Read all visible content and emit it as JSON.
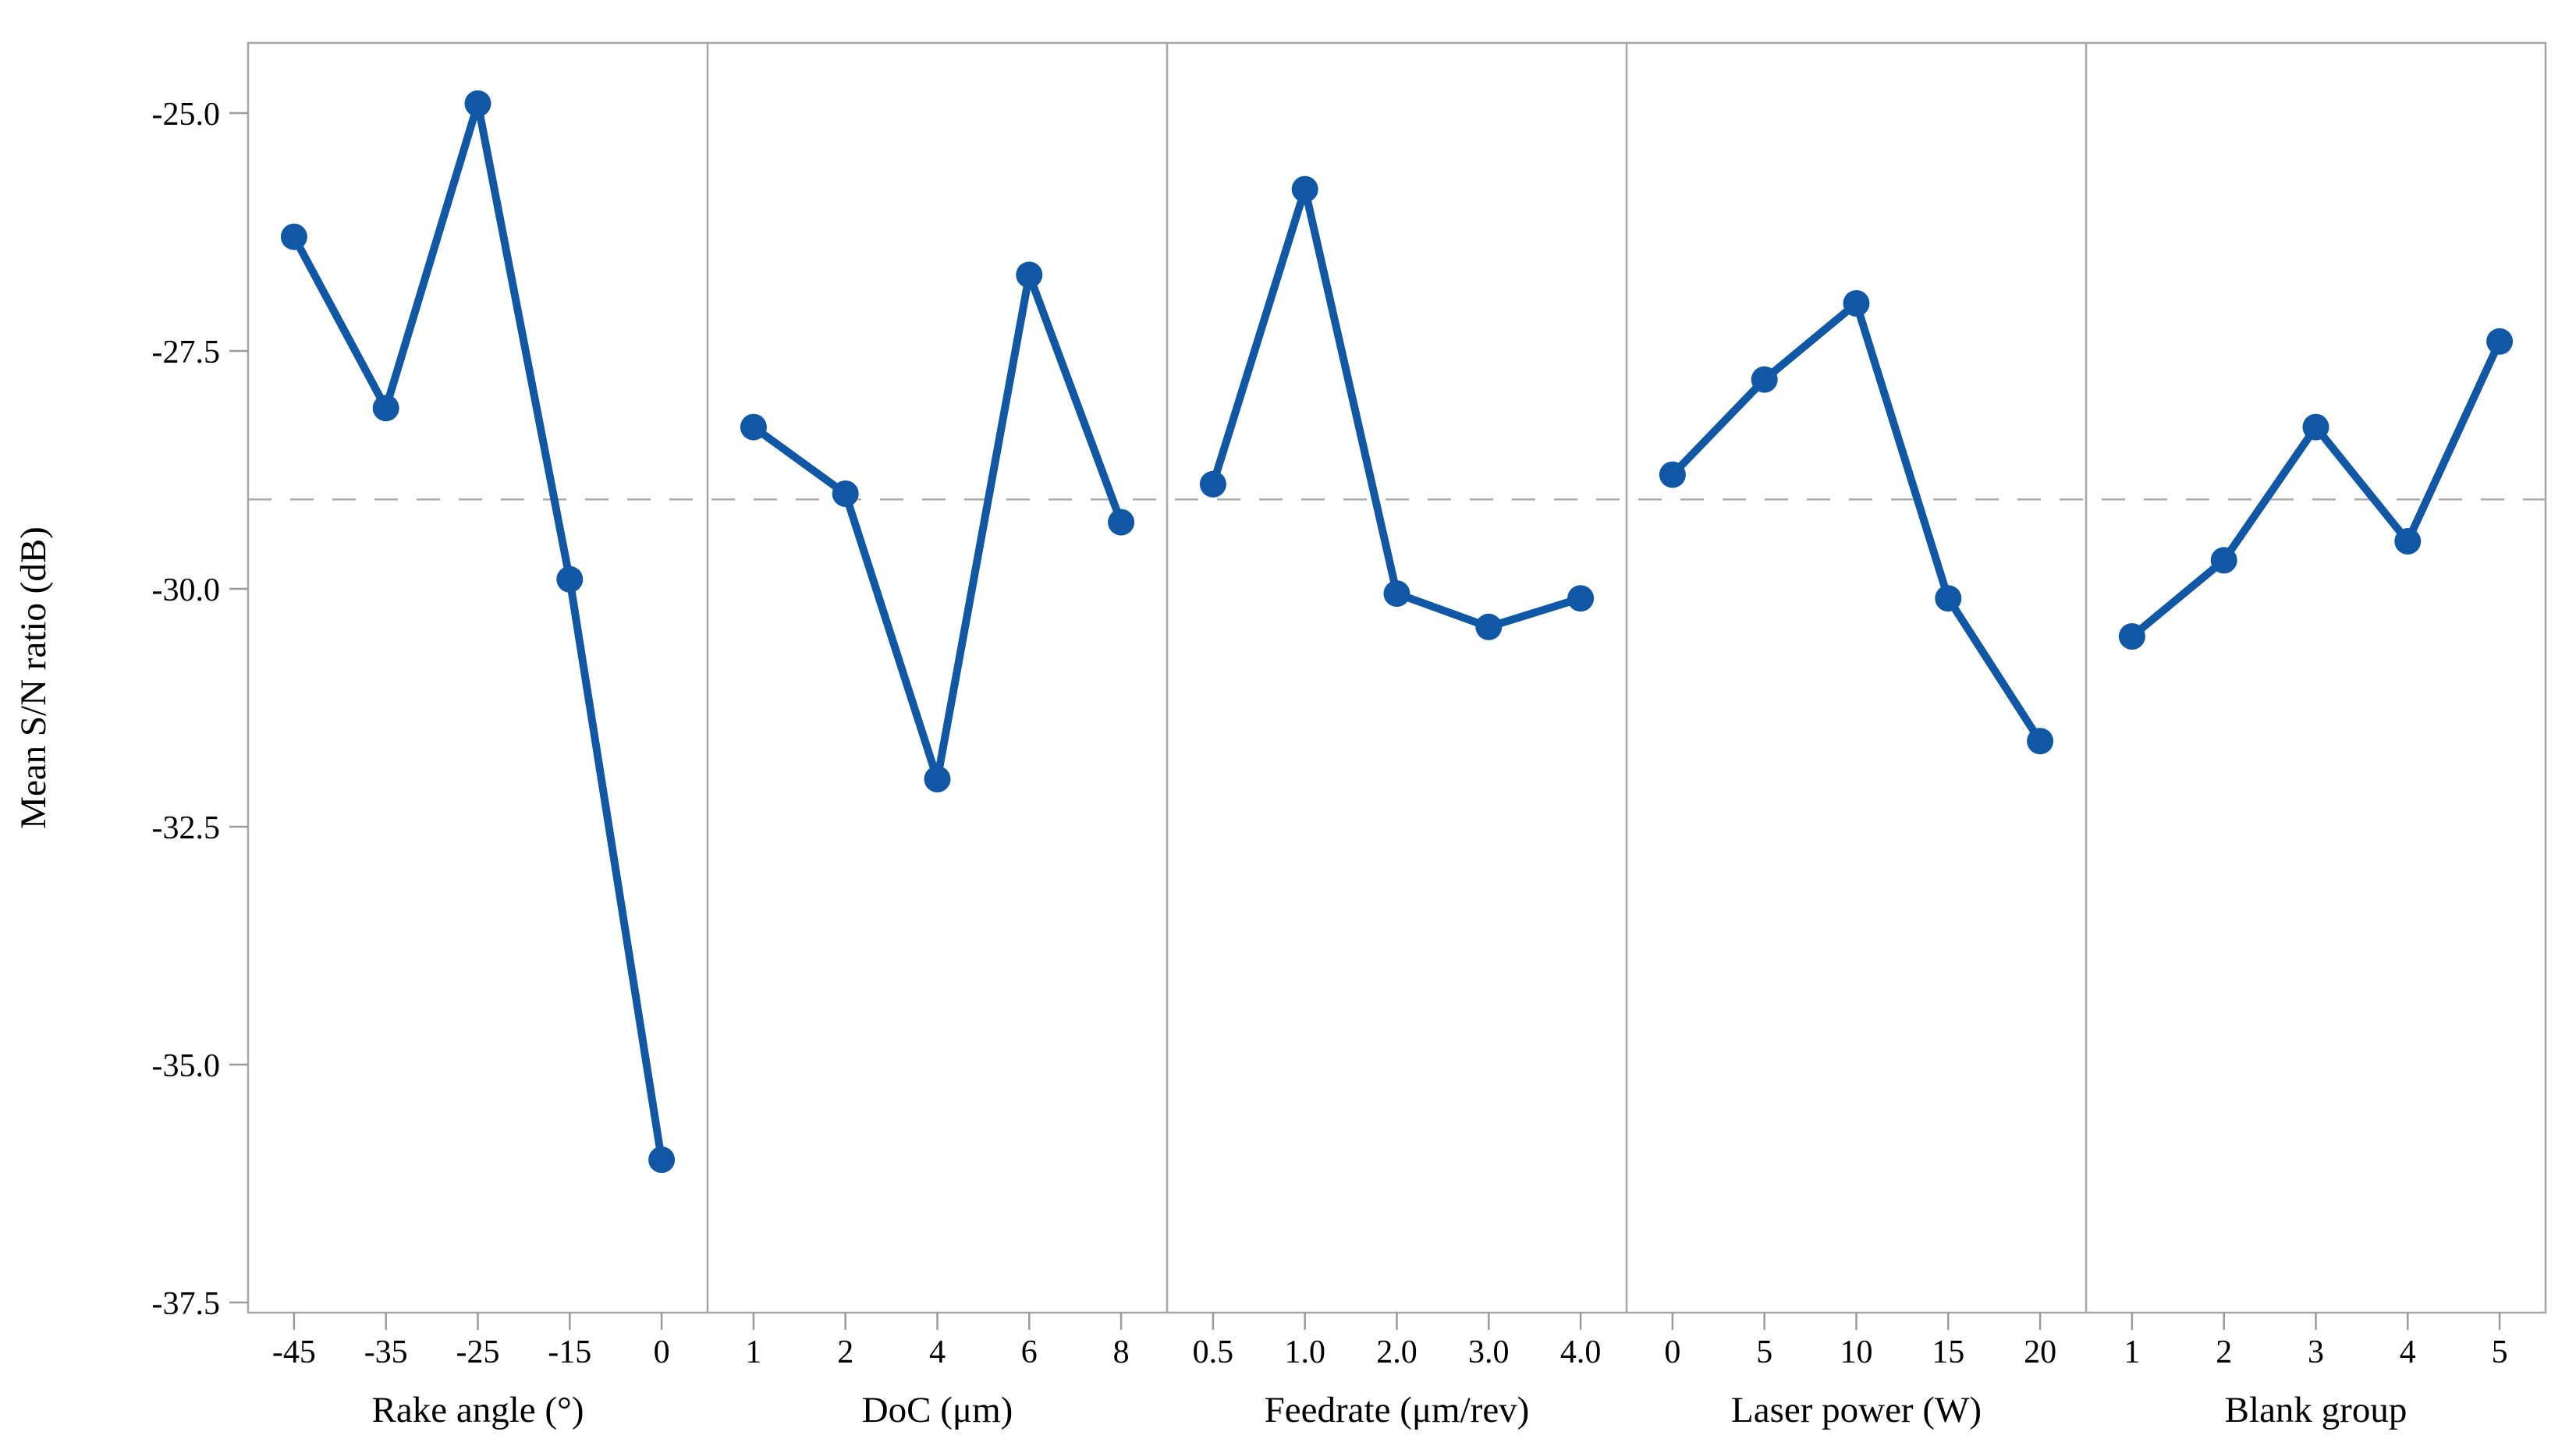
{
  "chart_data": {
    "type": "line",
    "title": "",
    "ylabel": "Mean S/N ratio (dB)",
    "ylim": [
      -37.5,
      -25.0
    ],
    "yticks": [
      "-25.0",
      "-27.5",
      "-30.0",
      "-32.5",
      "-35.0",
      "-37.5"
    ],
    "reference_line": -29.06,
    "grid": "off",
    "legend": "none",
    "panels": [
      {
        "xlabel": "Rake angle (°)",
        "categories": [
          "-45",
          "-35",
          "-25",
          "-15",
          "0"
        ],
        "values": [
          -26.3,
          -28.1,
          -24.9,
          -29.9,
          -36.0
        ]
      },
      {
        "xlabel": "DoC (μm)",
        "categories": [
          "1",
          "2",
          "4",
          "6",
          "8"
        ],
        "values": [
          -28.3,
          -29.0,
          -32.0,
          -26.7,
          -29.3
        ]
      },
      {
        "xlabel": "Feedrate (μm/rev)",
        "categories": [
          "0.5",
          "1.0",
          "2.0",
          "3.0",
          "4.0"
        ],
        "values": [
          -28.9,
          -25.8,
          -30.05,
          -30.4,
          -30.1
        ]
      },
      {
        "xlabel": "Laser power (W)",
        "categories": [
          "0",
          "5",
          "10",
          "15",
          "20"
        ],
        "values": [
          -28.8,
          -27.8,
          -27.0,
          -30.1,
          -31.6
        ]
      },
      {
        "xlabel": "Blank group",
        "categories": [
          "1",
          "2",
          "3",
          "4",
          "5"
        ],
        "values": [
          -30.5,
          -29.7,
          -28.3,
          -29.5,
          -27.4
        ]
      }
    ],
    "colors": {
      "series": "#1057A5",
      "frame": "#a6a6a6",
      "tick": "#9b9b9b",
      "reference": "#ababab",
      "text": "#000000"
    }
  }
}
